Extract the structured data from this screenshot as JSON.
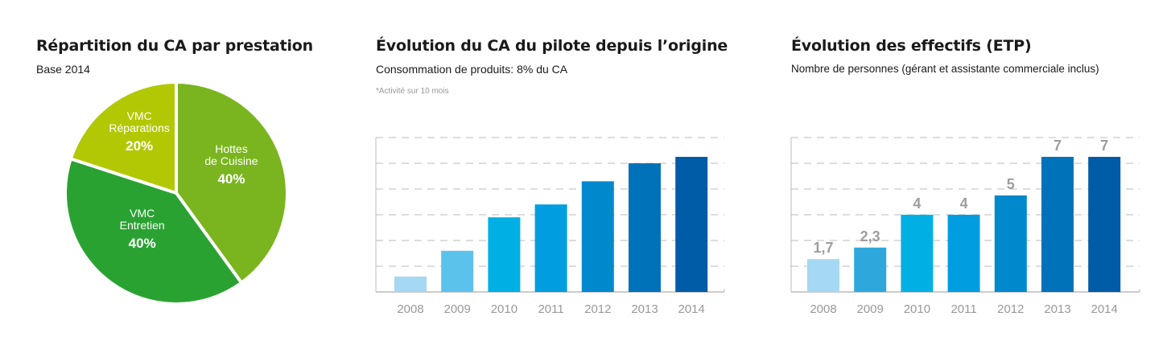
{
  "chart_data": [
    {
      "type": "pie",
      "title": "Répartition du CA par prestation",
      "subtitle": "Base 2014",
      "slices": [
        {
          "label_lines": [
            "Hottes",
            "de Cuisine"
          ],
          "value": 40,
          "value_label": "40%",
          "color": "#7ab51f"
        },
        {
          "label_lines": [
            "VMC",
            "Entretien"
          ],
          "value": 40,
          "value_label": "40%",
          "color": "#2aa232"
        },
        {
          "label_lines": [
            "VMC",
            "Réparations"
          ],
          "value": 20,
          "value_label": "20%",
          "color": "#b2c805"
        }
      ]
    },
    {
      "type": "bar",
      "title": "Évolution du CA du pilote depuis l’origine",
      "subtitle": "Consommation de produits: 8% du CA",
      "note": "*Activité sur 10 mois",
      "categories": [
        "2008",
        "2009",
        "2010",
        "2011",
        "2012",
        "2013",
        "2014"
      ],
      "values": [
        0.6,
        1.6,
        2.9,
        3.4,
        4.3,
        5.0,
        5.25
      ],
      "ylim": [
        0,
        6
      ],
      "grid": true,
      "colors": [
        "#a5d8f3",
        "#5bc2ec",
        "#00b0e4",
        "#009ee0",
        "#0088cc",
        "#0072b9",
        "#005ca6"
      ]
    },
    {
      "type": "bar",
      "title": "Évolution des effectifs (ETP)",
      "subtitle": "Nombre de personnes (gérant et assistante commerciale inclus)",
      "categories": [
        "2008",
        "2009",
        "2010",
        "2011",
        "2012",
        "2013",
        "2014"
      ],
      "values": [
        1.7,
        2.3,
        4,
        4,
        5,
        7,
        7
      ],
      "value_labels": [
        "1,7",
        "2,3",
        "4",
        "4",
        "5",
        "7",
        "7"
      ],
      "ylim": [
        0,
        8
      ],
      "grid": true,
      "colors": [
        "#a5d8f3",
        "#2ea8dc",
        "#00b0e4",
        "#009ee0",
        "#0088cc",
        "#0072b9",
        "#005ca6"
      ]
    }
  ]
}
